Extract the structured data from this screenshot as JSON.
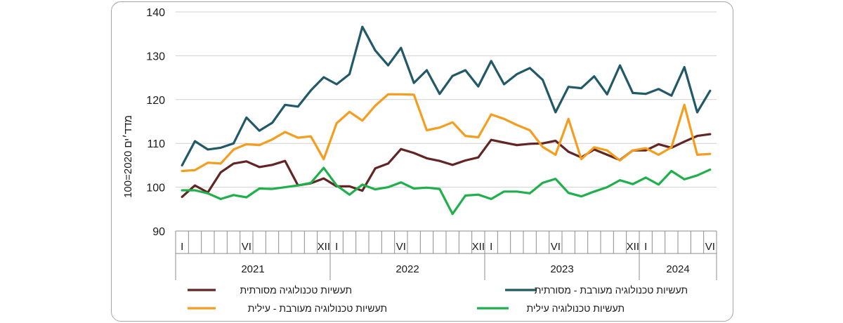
{
  "chart_data": {
    "type": "line",
    "title": "",
    "ylabel": "מדד׳ים 2020=100",
    "ylim": [
      90,
      140
    ],
    "yticks": [
      90,
      100,
      110,
      120,
      130,
      140
    ],
    "grid": true,
    "legend_position": "bottom",
    "month_tick_labels": [
      "I",
      "VI",
      "XII",
      "I",
      "VI",
      "XII",
      "I",
      "VI",
      "XII",
      "I",
      "VI"
    ],
    "month_tick_indices": [
      0,
      5,
      11,
      12,
      17,
      23,
      24,
      29,
      35,
      36,
      41
    ],
    "years": [
      "2021",
      "2022",
      "2023",
      "2024"
    ],
    "year_month_counts": [
      12,
      12,
      12,
      6
    ],
    "series": [
      {
        "name": "תעשיות טכנולוגיה מעורבת - מסורתית",
        "color": "#215968",
        "values": [
          105.0,
          110.5,
          108.6,
          109.0,
          110.0,
          115.9,
          112.9,
          114.7,
          118.8,
          118.4,
          122.1,
          125.1,
          123.5,
          125.8,
          136.6,
          131.2,
          127.8,
          131.8,
          123.8,
          126.7,
          121.3,
          125.4,
          126.7,
          123.0,
          128.8,
          123.5,
          125.8,
          127.2,
          124.5,
          117.1,
          122.9,
          122.6,
          125.3,
          121.2,
          127.8,
          121.5,
          121.3,
          122.4,
          120.9,
          127.4,
          117.1,
          122.0
        ]
      },
      {
        "name": "תעשיות טכנולוגיה מסורתית",
        "color": "#632523",
        "values": [
          97.8,
          100.4,
          98.8,
          103.4,
          105.4,
          105.9,
          104.6,
          105.1,
          106.0,
          100.4,
          100.9,
          102.0,
          100.2,
          100.2,
          99.2,
          104.3,
          105.4,
          108.7,
          107.8,
          106.6,
          106.0,
          105.1,
          106.1,
          106.8,
          110.8,
          110.2,
          109.6,
          109.9,
          110.0,
          110.6,
          108.1,
          106.8,
          108.6,
          107.4,
          106.2,
          108.4,
          108.4,
          109.8,
          109.0,
          110.4,
          111.7,
          112.1
        ]
      },
      {
        "name": "תעשיות טכנולוגיה מעורבת - עילית",
        "color": "#f59d1e",
        "values": [
          103.7,
          103.9,
          105.6,
          105.4,
          108.6,
          109.8,
          109.6,
          110.9,
          112.6,
          111.3,
          111.6,
          106.4,
          114.6,
          117.2,
          115.2,
          118.6,
          121.2,
          121.2,
          121.1,
          113.0,
          113.6,
          114.8,
          111.7,
          111.4,
          116.6,
          115.6,
          114.2,
          113.0,
          109.2,
          107.4,
          115.6,
          106.4,
          109.1,
          108.4,
          106.1,
          108.4,
          108.9,
          107.4,
          109.1,
          118.8,
          107.4,
          107.6
        ]
      },
      {
        "name": "תעשיות טכנולוגיה עילית",
        "color": "#1fb04b",
        "values": [
          99.3,
          99.3,
          98.6,
          97.3,
          98.2,
          97.7,
          99.7,
          99.6,
          100.0,
          100.4,
          101.0,
          104.4,
          100.4,
          98.3,
          100.6,
          99.5,
          100.0,
          101.1,
          99.7,
          99.9,
          99.6,
          93.9,
          98.1,
          98.3,
          97.3,
          99.0,
          99.0,
          98.6,
          101.0,
          101.9,
          98.7,
          97.9,
          99.0,
          100.0,
          101.6,
          100.7,
          102.2,
          100.6,
          103.7,
          101.8,
          102.7,
          104.0
        ]
      }
    ]
  }
}
